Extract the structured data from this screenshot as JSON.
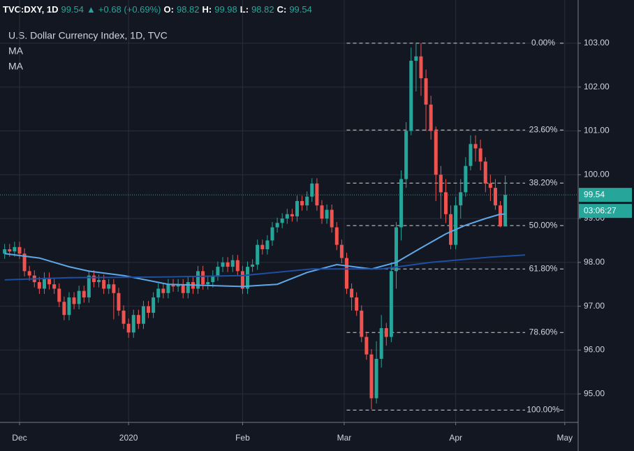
{
  "header": {
    "ticker": "TVC:DXY, 1D",
    "last": "99.54",
    "arrow": "▲",
    "change": "+0.68 (+0.69%)",
    "open_label": "O:",
    "open": "98.82",
    "high_label": "H:",
    "high": "99.98",
    "low_label": "L:",
    "low": "98.82",
    "close_label": "C:",
    "close": "99.54"
  },
  "chart_data": {
    "type": "candlestick",
    "title": "U.S. Dollar Currency Index, 1D, TVC",
    "x": [
      -3,
      -2,
      -1,
      0,
      1,
      2,
      3,
      4,
      5,
      6,
      7,
      8,
      9,
      10,
      11,
      12,
      13,
      14,
      15,
      16,
      17,
      18,
      19,
      20,
      21,
      22,
      23,
      24,
      25,
      26,
      27,
      28,
      29,
      30,
      31,
      32,
      33,
      34,
      35,
      36,
      37,
      38,
      39,
      40,
      41,
      42,
      43,
      44,
      45,
      46,
      47,
      48,
      49,
      50,
      51,
      52,
      53,
      54,
      55,
      56,
      57,
      58,
      59,
      60,
      61,
      62,
      63,
      64,
      65,
      66,
      67,
      68,
      69,
      70,
      71,
      72,
      73,
      74,
      75,
      76,
      77,
      78,
      79,
      80,
      81,
      82,
      83,
      84,
      85,
      86,
      87,
      88,
      89,
      90,
      91,
      92,
      93,
      94,
      95,
      96,
      97,
      98
    ],
    "open": [
      98.2,
      98.3,
      98.25,
      98.35,
      98.2,
      97.8,
      97.7,
      97.55,
      97.4,
      97.65,
      97.5,
      97.4,
      97.1,
      96.8,
      97.2,
      97.05,
      97.35,
      97.2,
      97.7,
      97.55,
      97.6,
      97.4,
      97.5,
      97.3,
      96.9,
      96.6,
      96.4,
      96.8,
      96.6,
      97.0,
      96.85,
      97.2,
      97.4,
      97.3,
      97.5,
      97.45,
      97.5,
      97.3,
      97.55,
      97.4,
      97.8,
      97.5,
      97.55,
      97.7,
      97.9,
      98.0,
      97.9,
      98.05,
      97.8,
      97.4,
      97.9,
      97.95,
      98.4,
      98.3,
      98.5,
      98.8,
      98.9,
      99.0,
      99.1,
      99.05,
      99.4,
      99.3,
      99.5,
      99.8,
      99.3,
      99.0,
      99.2,
      98.8,
      98.4,
      98.1,
      97.4,
      97.2,
      96.9,
      96.3,
      95.9,
      94.9,
      95.8,
      96.5,
      96.3,
      97.8,
      98.8,
      99.9,
      101.0,
      102.6,
      102.7,
      102.2,
      101.6,
      101.0,
      100.0,
      99.6,
      99.1,
      98.4,
      99.3,
      99.6,
      100.2,
      100.7,
      100.6,
      100.3,
      99.8,
      99.7,
      99.3,
      98.82
    ],
    "high": [
      98.42,
      98.42,
      98.47,
      98.47,
      98.32,
      97.92,
      97.82,
      97.67,
      97.77,
      97.77,
      97.62,
      97.52,
      97.22,
      97.32,
      97.32,
      97.47,
      97.47,
      97.82,
      97.82,
      97.72,
      97.72,
      97.62,
      97.62,
      97.42,
      97.02,
      96.72,
      96.92,
      96.92,
      97.12,
      97.12,
      97.32,
      97.52,
      97.52,
      97.62,
      97.62,
      97.62,
      97.62,
      97.67,
      97.67,
      97.92,
      97.92,
      97.67,
      97.82,
      98.02,
      98.12,
      98.12,
      98.17,
      98.17,
      97.92,
      98.02,
      98.07,
      98.52,
      98.52,
      98.62,
      98.92,
      99.02,
      99.12,
      99.22,
      99.22,
      99.52,
      99.52,
      99.62,
      99.92,
      99.92,
      99.42,
      99.32,
      99.32,
      98.92,
      98.52,
      98.22,
      97.52,
      97.32,
      97.02,
      96.42,
      96.02,
      96.2,
      96.8,
      96.62,
      98.0,
      98.92,
      100.1,
      101.2,
      102.9,
      103.0,
      103.0,
      102.4,
      101.8,
      101.1,
      100.2,
      99.9,
      99.3,
      99.5,
      99.9,
      100.4,
      100.9,
      100.9,
      100.8,
      100.4,
      100.0,
      99.9,
      99.4,
      99.98
    ],
    "low": [
      98.08,
      98.13,
      98.13,
      98.08,
      97.68,
      97.58,
      97.43,
      97.28,
      97.28,
      97.38,
      97.28,
      96.98,
      96.68,
      96.68,
      96.93,
      96.93,
      97.08,
      97.08,
      97.43,
      97.43,
      97.28,
      97.28,
      96.7,
      96.78,
      96.48,
      96.28,
      96.28,
      96.48,
      96.48,
      96.73,
      96.73,
      97.08,
      97.18,
      97.18,
      97.33,
      97.33,
      97.18,
      97.18,
      97.28,
      97.28,
      97.38,
      97.38,
      97.43,
      97.58,
      97.78,
      97.78,
      97.78,
      97.68,
      97.28,
      97.28,
      97.78,
      97.83,
      98.18,
      98.18,
      98.38,
      98.68,
      98.78,
      98.88,
      98.93,
      98.93,
      99.18,
      99.18,
      99.38,
      99.18,
      98.88,
      98.88,
      98.68,
      98.28,
      97.98,
      97.28,
      96.9,
      96.78,
      96.18,
      95.78,
      94.65,
      94.78,
      95.6,
      96.1,
      96.18,
      97.4,
      98.5,
      99.7,
      100.9,
      101.9,
      101.8,
      101.0,
      100.8,
      99.4,
      99.0,
      98.9,
      98.3,
      98.3,
      99.0,
      99.5,
      100.1,
      100.3,
      100.1,
      99.6,
      99.4,
      99.2,
      98.8,
      98.82
    ],
    "close": [
      98.3,
      98.25,
      98.35,
      98.2,
      97.8,
      97.7,
      97.55,
      97.4,
      97.65,
      97.5,
      97.4,
      97.1,
      96.8,
      97.2,
      97.05,
      97.35,
      97.2,
      97.7,
      97.55,
      97.6,
      97.4,
      97.5,
      97.3,
      96.9,
      96.6,
      96.4,
      96.8,
      96.6,
      97.0,
      96.85,
      97.2,
      97.4,
      97.3,
      97.5,
      97.45,
      97.5,
      97.3,
      97.55,
      97.4,
      97.8,
      97.5,
      97.55,
      97.7,
      97.9,
      98.0,
      97.9,
      98.05,
      97.8,
      97.4,
      97.9,
      97.95,
      98.4,
      98.3,
      98.5,
      98.8,
      98.9,
      99.0,
      99.1,
      99.05,
      99.4,
      99.3,
      99.5,
      99.8,
      99.3,
      99.0,
      99.2,
      98.8,
      98.4,
      98.1,
      97.4,
      97.2,
      96.9,
      96.3,
      95.9,
      94.9,
      95.8,
      96.5,
      96.3,
      97.8,
      98.8,
      99.9,
      101.0,
      102.6,
      102.7,
      102.2,
      101.6,
      101.0,
      100.0,
      99.6,
      99.1,
      98.4,
      99.3,
      99.6,
      100.2,
      100.7,
      100.6,
      100.3,
      99.8,
      99.7,
      99.3,
      98.82,
      99.54
    ],
    "up_color": "#26a69a",
    "down_color": "#ef5350",
    "series": [
      {
        "name": "MA",
        "color": "#5fa8e8",
        "x": [
          -3,
          4,
          10,
          14,
          21,
          30,
          45,
          52,
          58,
          64,
          71,
          76,
          81,
          86,
          90,
          94,
          97,
          98
        ],
        "values": [
          98.2,
          98.1,
          97.9,
          97.8,
          97.7,
          97.5,
          97.45,
          97.5,
          97.77,
          97.95,
          97.85,
          98.0,
          98.33,
          98.65,
          98.85,
          99.0,
          99.1,
          99.1
        ]
      },
      {
        "name": "MA",
        "color": "#1e4fa3",
        "x": [
          -3,
          10,
          30,
          45,
          59,
          73,
          83,
          95,
          102
        ],
        "values": [
          97.6,
          97.65,
          97.67,
          97.7,
          97.85,
          97.85,
          98.0,
          98.12,
          98.17
        ]
      }
    ],
    "fib_levels": [
      {
        "label": "0.00%",
        "price": 103.0
      },
      {
        "label": "23.60%",
        "price": 101.02
      },
      {
        "label": "38.20%",
        "price": 99.81
      },
      {
        "label": "50.00%",
        "price": 98.84
      },
      {
        "label": "61.80%",
        "price": 97.85
      },
      {
        "label": "78.60%",
        "price": 96.4
      },
      {
        "label": "100.00%",
        "price": 94.63
      }
    ],
    "last_price": 99.54,
    "countdown": "03:06:27",
    "xlim": [
      -3.94,
      112.7
    ],
    "xticks": [
      {
        "value": 0,
        "label": "Dec"
      },
      {
        "value": 22,
        "label": "2020"
      },
      {
        "value": 45,
        "label": "Feb"
      },
      {
        "value": 65.5,
        "label": "Mar"
      },
      {
        "value": 88,
        "label": "Apr"
      },
      {
        "value": 110,
        "label": "May"
      }
    ],
    "ylim": [
      94.35,
      103.54
    ],
    "yticks": [
      {
        "value": 95,
        "label": "95.00"
      },
      {
        "value": 96,
        "label": "96.00"
      },
      {
        "value": 97,
        "label": "97.00"
      },
      {
        "value": 98,
        "label": "98.00"
      },
      {
        "value": 99,
        "label": "99.00"
      },
      {
        "value": 100,
        "label": "100.00"
      },
      {
        "value": 101,
        "label": "101.00"
      },
      {
        "value": 102,
        "label": "102.00"
      },
      {
        "value": 103,
        "label": "103.00"
      }
    ],
    "grid": true
  }
}
